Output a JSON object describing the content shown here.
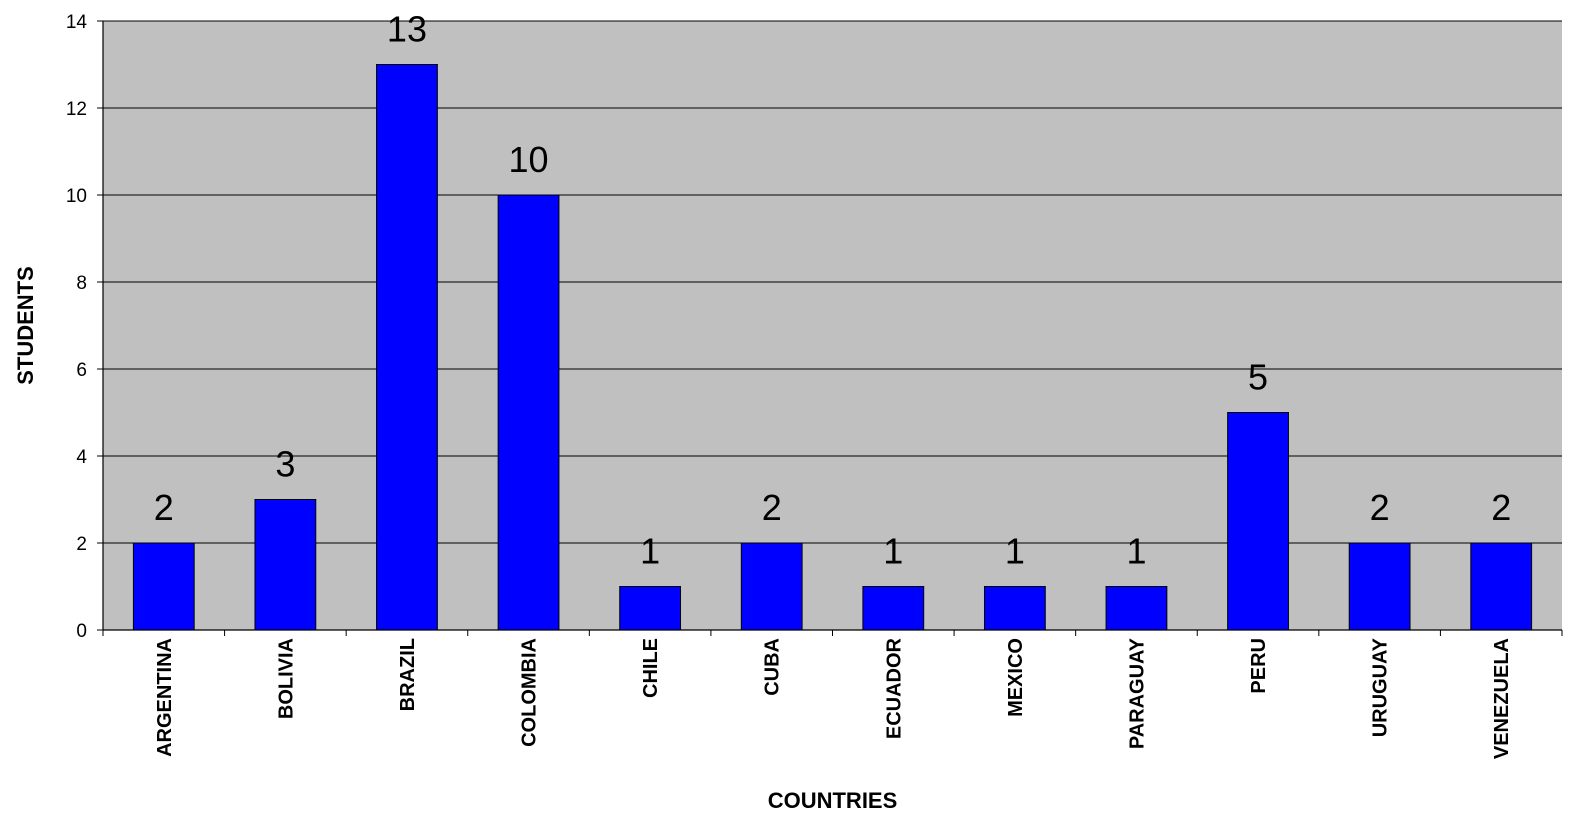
{
  "chart_data": {
    "type": "bar",
    "title": "",
    "xlabel": "COUNTRIES",
    "ylabel": "STUDENTS",
    "categories": [
      "ARGENTINA",
      "BOLIVIA",
      "BRAZIL",
      "COLOMBIA",
      "CHILE",
      "CUBA",
      "ECUADOR",
      "MEXICO",
      "PARAGUAY",
      "PERU",
      "URUGUAY",
      "VENEZUELA"
    ],
    "values": [
      2,
      3,
      13,
      10,
      1,
      2,
      1,
      1,
      1,
      5,
      2,
      2
    ],
    "ylim": [
      0,
      14
    ],
    "yticks": [
      0,
      2,
      4,
      6,
      8,
      10,
      12,
      14
    ],
    "grid": true,
    "legend": "none",
    "colors": {
      "bar": "#0000ff",
      "plot_background": "#c0c0c0",
      "page_background": "#ffffff",
      "grid": "#000000"
    }
  }
}
